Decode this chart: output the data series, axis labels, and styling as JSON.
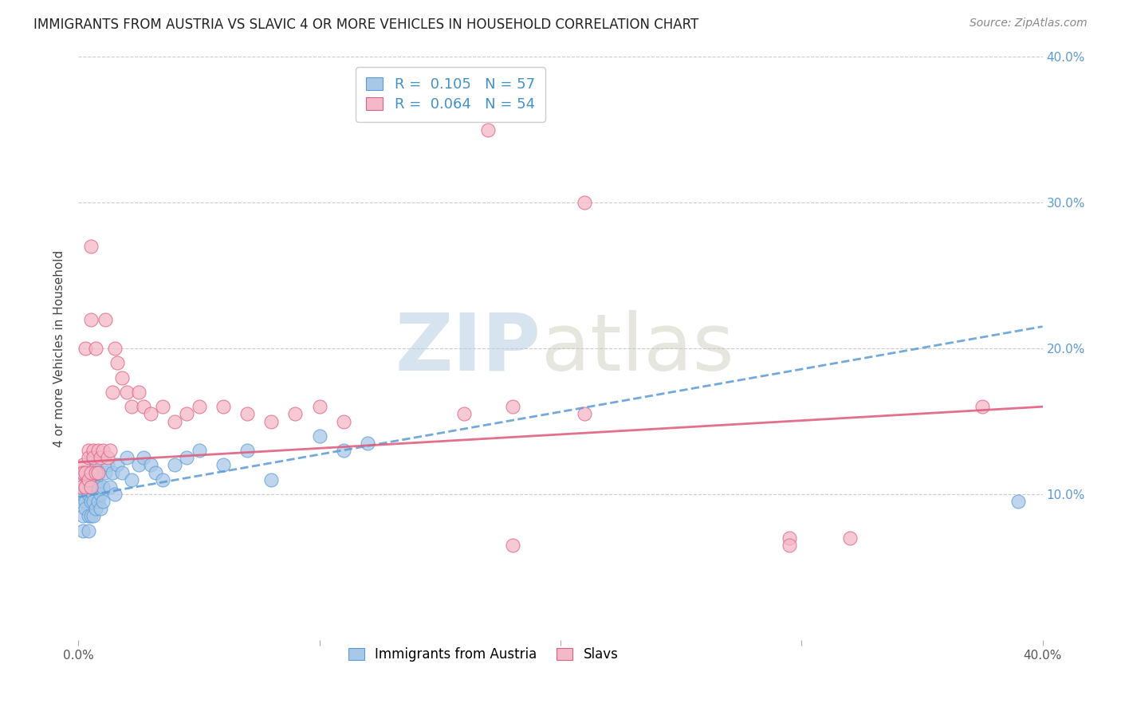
{
  "title": "IMMIGRANTS FROM AUSTRIA VS SLAVIC 4 OR MORE VEHICLES IN HOUSEHOLD CORRELATION CHART",
  "source": "Source: ZipAtlas.com",
  "ylabel": "4 or more Vehicles in Household",
  "xlim": [
    0.0,
    0.4
  ],
  "ylim": [
    0.0,
    0.4
  ],
  "austria_color": "#a8c8e8",
  "austria_edge_color": "#5b9bd5",
  "slavic_color": "#f4b8c8",
  "slavic_edge_color": "#e06080",
  "austria_line_color": "#5b9bd5",
  "slavic_line_color": "#e06080",
  "background_color": "#ffffff",
  "grid_color": "#cccccc",
  "right_axis_color": "#5b9bd5",
  "austria_x": [
    0.001,
    0.001,
    0.002,
    0.002,
    0.002,
    0.003,
    0.003,
    0.003,
    0.003,
    0.004,
    0.004,
    0.004,
    0.004,
    0.005,
    0.005,
    0.005,
    0.005,
    0.005,
    0.006,
    0.006,
    0.006,
    0.006,
    0.007,
    0.007,
    0.007,
    0.007,
    0.008,
    0.008,
    0.008,
    0.009,
    0.009,
    0.01,
    0.01,
    0.011,
    0.012,
    0.013,
    0.014,
    0.015,
    0.016,
    0.018,
    0.02,
    0.022,
    0.025,
    0.027,
    0.03,
    0.032,
    0.035,
    0.04,
    0.045,
    0.05,
    0.06,
    0.07,
    0.08,
    0.1,
    0.11,
    0.12,
    0.39
  ],
  "austria_y": [
    0.095,
    0.105,
    0.085,
    0.1,
    0.075,
    0.115,
    0.095,
    0.105,
    0.09,
    0.1,
    0.085,
    0.115,
    0.075,
    0.11,
    0.095,
    0.105,
    0.085,
    0.125,
    0.1,
    0.115,
    0.085,
    0.095,
    0.11,
    0.105,
    0.09,
    0.12,
    0.095,
    0.105,
    0.115,
    0.1,
    0.09,
    0.105,
    0.095,
    0.115,
    0.12,
    0.105,
    0.115,
    0.1,
    0.12,
    0.115,
    0.125,
    0.11,
    0.12,
    0.125,
    0.12,
    0.115,
    0.11,
    0.12,
    0.125,
    0.13,
    0.12,
    0.13,
    0.11,
    0.14,
    0.13,
    0.135,
    0.095
  ],
  "slavic_x": [
    0.001,
    0.001,
    0.002,
    0.002,
    0.003,
    0.003,
    0.003,
    0.004,
    0.004,
    0.004,
    0.005,
    0.005,
    0.005,
    0.006,
    0.006,
    0.007,
    0.007,
    0.008,
    0.008,
    0.009,
    0.01,
    0.011,
    0.012,
    0.013,
    0.014,
    0.015,
    0.016,
    0.018,
    0.02,
    0.022,
    0.025,
    0.027,
    0.03,
    0.035,
    0.04,
    0.045,
    0.05,
    0.06,
    0.07,
    0.08,
    0.09,
    0.1,
    0.11,
    0.16,
    0.18,
    0.21,
    0.17,
    0.21,
    0.295,
    0.32,
    0.375,
    0.005,
    0.18,
    0.295
  ],
  "slavic_y": [
    0.115,
    0.105,
    0.12,
    0.115,
    0.2,
    0.115,
    0.105,
    0.13,
    0.125,
    0.11,
    0.22,
    0.115,
    0.105,
    0.13,
    0.125,
    0.2,
    0.115,
    0.13,
    0.115,
    0.125,
    0.13,
    0.22,
    0.125,
    0.13,
    0.17,
    0.2,
    0.19,
    0.18,
    0.17,
    0.16,
    0.17,
    0.16,
    0.155,
    0.16,
    0.15,
    0.155,
    0.16,
    0.16,
    0.155,
    0.15,
    0.155,
    0.16,
    0.15,
    0.155,
    0.16,
    0.155,
    0.35,
    0.3,
    0.07,
    0.07,
    0.16,
    0.27,
    0.065,
    0.065
  ]
}
